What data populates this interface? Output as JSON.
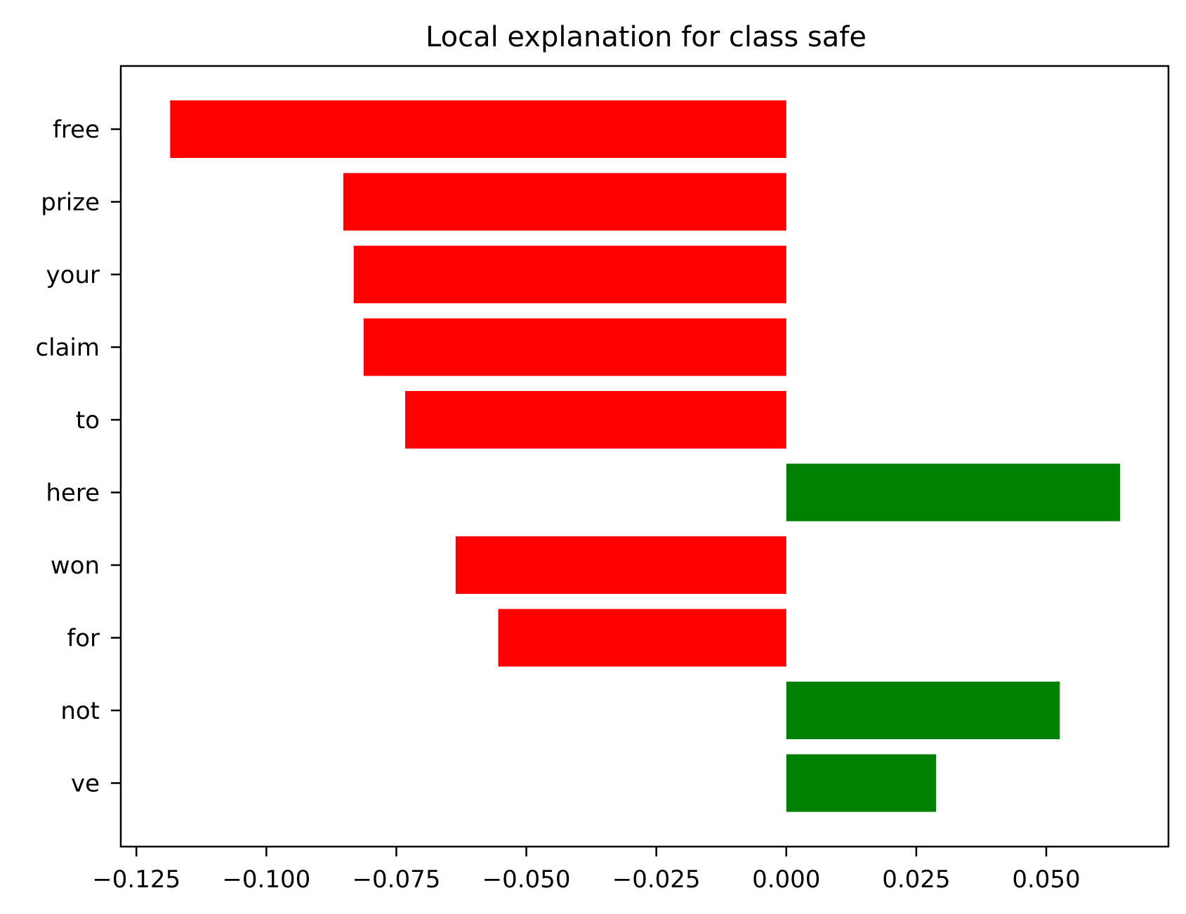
{
  "chart_data": {
    "type": "bar",
    "orientation": "horizontal",
    "title": "Local explanation for class safe",
    "xlabel": "",
    "ylabel": "",
    "categories": [
      "free",
      "prize",
      "your",
      "claim",
      "to",
      "here",
      "won",
      "for",
      "not",
      "ve"
    ],
    "values": [
      -0.1185,
      -0.0852,
      -0.0832,
      -0.0813,
      -0.0733,
      0.0642,
      -0.0636,
      -0.0554,
      0.0526,
      0.0288
    ],
    "colors": {
      "positive": "#008000",
      "negative": "#ff0000"
    },
    "xlim": [
      -0.128,
      0.0735
    ],
    "xticks": [
      -0.125,
      -0.1,
      -0.075,
      -0.05,
      -0.025,
      0.0,
      0.025,
      0.05
    ],
    "xtick_labels": [
      "−0.125",
      "−0.100",
      "−0.075",
      "−0.050",
      "−0.025",
      "0.000",
      "0.025",
      "0.050"
    ],
    "grid": false,
    "legend": "none"
  }
}
